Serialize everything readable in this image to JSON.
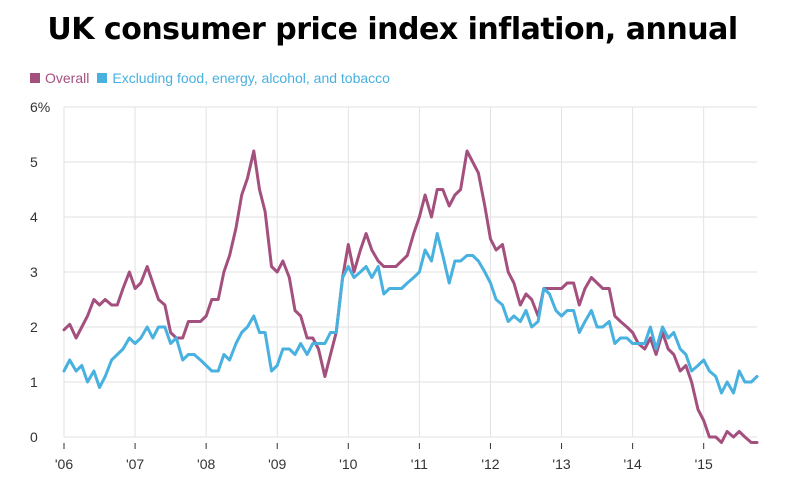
{
  "title": "UK consumer price index inflation, annual",
  "colors": {
    "overall": "#a4507f",
    "core": "#48b1df",
    "grid": "#e2e2e2",
    "axis": "#333333"
  },
  "chart_data": {
    "type": "line",
    "title": "UK consumer price index inflation, annual",
    "xlabel": "",
    "ylabel": "",
    "ylim": [
      0,
      6
    ],
    "xlim": [
      2006,
      2015.75
    ],
    "grid": "vertical-and-horizontal",
    "legend_placement": "top-left",
    "y_ticks": [
      {
        "value": 6,
        "label": "6%"
      },
      {
        "value": 5,
        "label": "5"
      },
      {
        "value": 4,
        "label": "4"
      },
      {
        "value": 3,
        "label": "3"
      },
      {
        "value": 2,
        "label": "2"
      },
      {
        "value": 1,
        "label": "1"
      },
      {
        "value": 0,
        "label": "0"
      }
    ],
    "x_ticks": [
      {
        "value": 2006,
        "label": "'06"
      },
      {
        "value": 2007,
        "label": "'07"
      },
      {
        "value": 2008,
        "label": "'08"
      },
      {
        "value": 2009,
        "label": "'09"
      },
      {
        "value": 2010,
        "label": "'10"
      },
      {
        "value": 2011,
        "label": "'11"
      },
      {
        "value": 2012,
        "label": "'12"
      },
      {
        "value": 2013,
        "label": "'13"
      },
      {
        "value": 2014,
        "label": "'14"
      },
      {
        "value": 2015,
        "label": "'15"
      }
    ],
    "series": [
      {
        "name": "Overall",
        "points": [
          [
            2006.0,
            1.95
          ],
          [
            2006.08,
            2.05
          ],
          [
            2006.17,
            1.8
          ],
          [
            2006.25,
            2.0
          ],
          [
            2006.33,
            2.2
          ],
          [
            2006.42,
            2.5
          ],
          [
            2006.5,
            2.4
          ],
          [
            2006.58,
            2.5
          ],
          [
            2006.67,
            2.4
          ],
          [
            2006.75,
            2.4
          ],
          [
            2006.83,
            2.7
          ],
          [
            2006.92,
            3.0
          ],
          [
            2007.0,
            2.7
          ],
          [
            2007.08,
            2.8
          ],
          [
            2007.17,
            3.1
          ],
          [
            2007.25,
            2.8
          ],
          [
            2007.33,
            2.5
          ],
          [
            2007.42,
            2.4
          ],
          [
            2007.5,
            1.9
          ],
          [
            2007.58,
            1.8
          ],
          [
            2007.67,
            1.8
          ],
          [
            2007.75,
            2.1
          ],
          [
            2007.83,
            2.1
          ],
          [
            2007.92,
            2.1
          ],
          [
            2008.0,
            2.2
          ],
          [
            2008.08,
            2.5
          ],
          [
            2008.17,
            2.5
          ],
          [
            2008.25,
            3.0
          ],
          [
            2008.33,
            3.3
          ],
          [
            2008.42,
            3.8
          ],
          [
            2008.5,
            4.4
          ],
          [
            2008.58,
            4.7
          ],
          [
            2008.67,
            5.2
          ],
          [
            2008.75,
            4.5
          ],
          [
            2008.83,
            4.1
          ],
          [
            2008.92,
            3.1
          ],
          [
            2009.0,
            3.0
          ],
          [
            2009.08,
            3.2
          ],
          [
            2009.17,
            2.9
          ],
          [
            2009.25,
            2.3
          ],
          [
            2009.33,
            2.2
          ],
          [
            2009.42,
            1.8
          ],
          [
            2009.5,
            1.8
          ],
          [
            2009.58,
            1.6
          ],
          [
            2009.67,
            1.1
          ],
          [
            2009.75,
            1.5
          ],
          [
            2009.83,
            1.9
          ],
          [
            2009.92,
            2.9
          ],
          [
            2010.0,
            3.5
          ],
          [
            2010.08,
            3.0
          ],
          [
            2010.17,
            3.4
          ],
          [
            2010.25,
            3.7
          ],
          [
            2010.33,
            3.4
          ],
          [
            2010.42,
            3.2
          ],
          [
            2010.5,
            3.1
          ],
          [
            2010.58,
            3.1
          ],
          [
            2010.67,
            3.1
          ],
          [
            2010.75,
            3.2
          ],
          [
            2010.83,
            3.3
          ],
          [
            2010.92,
            3.7
          ],
          [
            2011.0,
            4.0
          ],
          [
            2011.08,
            4.4
          ],
          [
            2011.17,
            4.0
          ],
          [
            2011.25,
            4.5
          ],
          [
            2011.33,
            4.5
          ],
          [
            2011.42,
            4.2
          ],
          [
            2011.5,
            4.4
          ],
          [
            2011.58,
            4.5
          ],
          [
            2011.67,
            5.2
          ],
          [
            2011.75,
            5.0
          ],
          [
            2011.83,
            4.8
          ],
          [
            2011.92,
            4.2
          ],
          [
            2012.0,
            3.6
          ],
          [
            2012.08,
            3.4
          ],
          [
            2012.17,
            3.5
          ],
          [
            2012.25,
            3.0
          ],
          [
            2012.33,
            2.8
          ],
          [
            2012.42,
            2.4
          ],
          [
            2012.5,
            2.6
          ],
          [
            2012.58,
            2.5
          ],
          [
            2012.67,
            2.2
          ],
          [
            2012.75,
            2.7
          ],
          [
            2012.83,
            2.7
          ],
          [
            2012.92,
            2.7
          ],
          [
            2013.0,
            2.7
          ],
          [
            2013.08,
            2.8
          ],
          [
            2013.17,
            2.8
          ],
          [
            2013.25,
            2.4
          ],
          [
            2013.33,
            2.7
          ],
          [
            2013.42,
            2.9
          ],
          [
            2013.5,
            2.8
          ],
          [
            2013.58,
            2.7
          ],
          [
            2013.67,
            2.7
          ],
          [
            2013.75,
            2.2
          ],
          [
            2013.83,
            2.1
          ],
          [
            2013.92,
            2.0
          ],
          [
            2014.0,
            1.9
          ],
          [
            2014.08,
            1.7
          ],
          [
            2014.17,
            1.6
          ],
          [
            2014.25,
            1.8
          ],
          [
            2014.33,
            1.5
          ],
          [
            2014.42,
            1.9
          ],
          [
            2014.5,
            1.6
          ],
          [
            2014.58,
            1.5
          ],
          [
            2014.67,
            1.2
          ],
          [
            2014.75,
            1.3
          ],
          [
            2014.83,
            1.0
          ],
          [
            2014.92,
            0.5
          ],
          [
            2015.0,
            0.3
          ],
          [
            2015.08,
            0.0
          ],
          [
            2015.17,
            0.0
          ],
          [
            2015.25,
            -0.1
          ],
          [
            2015.33,
            0.1
          ],
          [
            2015.42,
            0.0
          ],
          [
            2015.5,
            0.1
          ],
          [
            2015.58,
            0.0
          ],
          [
            2015.67,
            -0.1
          ],
          [
            2015.75,
            -0.1
          ]
        ]
      },
      {
        "name": "Excluding food, energy, alcohol, and tobacco",
        "points": [
          [
            2006.0,
            1.2
          ],
          [
            2006.08,
            1.4
          ],
          [
            2006.17,
            1.2
          ],
          [
            2006.25,
            1.3
          ],
          [
            2006.33,
            1.0
          ],
          [
            2006.42,
            1.2
          ],
          [
            2006.5,
            0.9
          ],
          [
            2006.58,
            1.1
          ],
          [
            2006.67,
            1.4
          ],
          [
            2006.75,
            1.5
          ],
          [
            2006.83,
            1.6
          ],
          [
            2006.92,
            1.8
          ],
          [
            2007.0,
            1.7
          ],
          [
            2007.08,
            1.8
          ],
          [
            2007.17,
            2.0
          ],
          [
            2007.25,
            1.8
          ],
          [
            2007.33,
            2.0
          ],
          [
            2007.42,
            2.0
          ],
          [
            2007.5,
            1.7
          ],
          [
            2007.58,
            1.8
          ],
          [
            2007.67,
            1.4
          ],
          [
            2007.75,
            1.5
          ],
          [
            2007.83,
            1.5
          ],
          [
            2007.92,
            1.4
          ],
          [
            2008.0,
            1.3
          ],
          [
            2008.08,
            1.2
          ],
          [
            2008.17,
            1.2
          ],
          [
            2008.25,
            1.5
          ],
          [
            2008.33,
            1.4
          ],
          [
            2008.42,
            1.7
          ],
          [
            2008.5,
            1.9
          ],
          [
            2008.58,
            2.0
          ],
          [
            2008.67,
            2.2
          ],
          [
            2008.75,
            1.9
          ],
          [
            2008.83,
            1.9
          ],
          [
            2008.92,
            1.2
          ],
          [
            2009.0,
            1.3
          ],
          [
            2009.08,
            1.6
          ],
          [
            2009.17,
            1.6
          ],
          [
            2009.25,
            1.5
          ],
          [
            2009.33,
            1.7
          ],
          [
            2009.42,
            1.5
          ],
          [
            2009.5,
            1.7
          ],
          [
            2009.58,
            1.7
          ],
          [
            2009.67,
            1.7
          ],
          [
            2009.75,
            1.9
          ],
          [
            2009.83,
            1.9
          ],
          [
            2009.92,
            2.9
          ],
          [
            2010.0,
            3.1
          ],
          [
            2010.08,
            2.9
          ],
          [
            2010.17,
            3.0
          ],
          [
            2010.25,
            3.1
          ],
          [
            2010.33,
            2.9
          ],
          [
            2010.42,
            3.1
          ],
          [
            2010.5,
            2.6
          ],
          [
            2010.58,
            2.7
          ],
          [
            2010.67,
            2.7
          ],
          [
            2010.75,
            2.7
          ],
          [
            2010.83,
            2.8
          ],
          [
            2010.92,
            2.9
          ],
          [
            2011.0,
            3.0
          ],
          [
            2011.08,
            3.4
          ],
          [
            2011.17,
            3.2
          ],
          [
            2011.25,
            3.7
          ],
          [
            2011.33,
            3.3
          ],
          [
            2011.42,
            2.8
          ],
          [
            2011.5,
            3.2
          ],
          [
            2011.58,
            3.2
          ],
          [
            2011.67,
            3.3
          ],
          [
            2011.75,
            3.3
          ],
          [
            2011.83,
            3.2
          ],
          [
            2011.92,
            3.0
          ],
          [
            2012.0,
            2.8
          ],
          [
            2012.08,
            2.5
          ],
          [
            2012.17,
            2.4
          ],
          [
            2012.25,
            2.1
          ],
          [
            2012.33,
            2.2
          ],
          [
            2012.42,
            2.1
          ],
          [
            2012.5,
            2.3
          ],
          [
            2012.58,
            2.0
          ],
          [
            2012.67,
            2.1
          ],
          [
            2012.75,
            2.7
          ],
          [
            2012.83,
            2.6
          ],
          [
            2012.92,
            2.3
          ],
          [
            2013.0,
            2.2
          ],
          [
            2013.08,
            2.3
          ],
          [
            2013.17,
            2.3
          ],
          [
            2013.25,
            1.9
          ],
          [
            2013.33,
            2.1
          ],
          [
            2013.42,
            2.3
          ],
          [
            2013.5,
            2.0
          ],
          [
            2013.58,
            2.0
          ],
          [
            2013.67,
            2.1
          ],
          [
            2013.75,
            1.7
          ],
          [
            2013.83,
            1.8
          ],
          [
            2013.92,
            1.8
          ],
          [
            2014.0,
            1.7
          ],
          [
            2014.08,
            1.7
          ],
          [
            2014.17,
            1.7
          ],
          [
            2014.25,
            2.0
          ],
          [
            2014.33,
            1.6
          ],
          [
            2014.42,
            2.0
          ],
          [
            2014.5,
            1.8
          ],
          [
            2014.58,
            1.9
          ],
          [
            2014.67,
            1.6
          ],
          [
            2014.75,
            1.5
          ],
          [
            2014.83,
            1.2
          ],
          [
            2014.92,
            1.3
          ],
          [
            2015.0,
            1.4
          ],
          [
            2015.08,
            1.2
          ],
          [
            2015.17,
            1.1
          ],
          [
            2015.25,
            0.8
          ],
          [
            2015.33,
            1.0
          ],
          [
            2015.42,
            0.8
          ],
          [
            2015.5,
            1.2
          ],
          [
            2015.58,
            1.0
          ],
          [
            2015.67,
            1.0
          ],
          [
            2015.75,
            1.1
          ]
        ]
      }
    ]
  }
}
